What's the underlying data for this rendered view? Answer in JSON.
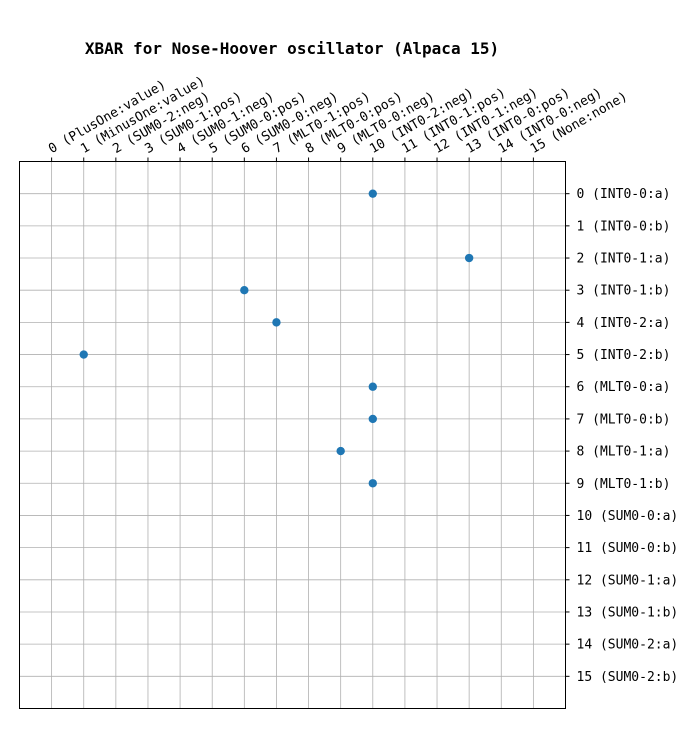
{
  "chart_data": {
    "type": "scatter",
    "title": "XBAR for Nose-Hoover oscillator (Alpaca 15)",
    "xlabel": "",
    "ylabel": "",
    "x_ticks": [
      "0 (PlusOne:value)",
      "1 (MinusOne:value)",
      "2 (SUM0-2:neg)",
      "3 (SUM0-1:pos)",
      "4 (SUM0-1:neg)",
      "5 (SUM0-0:pos)",
      "6 (SUM0-0:neg)",
      "7 (MLT0-1:pos)",
      "8 (MLT0-0:pos)",
      "9 (MLT0-0:neg)",
      "10 (INT0-2:neg)",
      "11 (INT0-1:pos)",
      "12 (INT0-1:neg)",
      "13 (INT0-0:pos)",
      "14 (INT0-0:neg)",
      "15 (None:none)"
    ],
    "y_ticks": [
      "0 (INT0-0:a)",
      "1 (INT0-0:b)",
      "2 (INT0-1:a)",
      "3 (INT0-1:b)",
      "4 (INT0-2:a)",
      "5 (INT0-2:b)",
      "6 (MLT0-0:a)",
      "7 (MLT0-0:b)",
      "8 (MLT0-1:a)",
      "9 (MLT0-1:b)",
      "10 (SUM0-0:a)",
      "11 (SUM0-0:b)",
      "12 (SUM0-1:a)",
      "13 (SUM0-1:b)",
      "14 (SUM0-2:a)",
      "15 (SUM0-2:b)"
    ],
    "x_axis_position": "top",
    "y_axis_position": "right",
    "y_inverted": true,
    "xlim": [
      -1,
      16
    ],
    "ylim": [
      -1,
      16
    ],
    "grid": true,
    "marker_color": "#1f77b4",
    "points": [
      {
        "x": 10,
        "y": 0
      },
      {
        "x": 13,
        "y": 2
      },
      {
        "x": 6,
        "y": 3
      },
      {
        "x": 7,
        "y": 4
      },
      {
        "x": 1,
        "y": 5
      },
      {
        "x": 10,
        "y": 6
      },
      {
        "x": 10,
        "y": 7
      },
      {
        "x": 9,
        "y": 8
      },
      {
        "x": 10,
        "y": 9
      }
    ]
  }
}
